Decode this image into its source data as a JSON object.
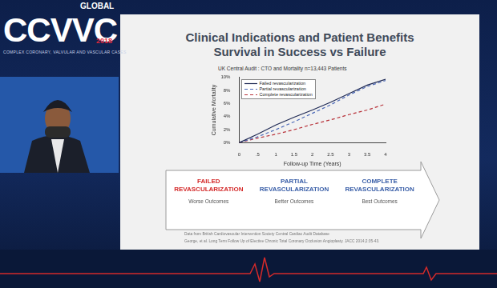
{
  "logo": {
    "event": "GLOBAL",
    "name": "CCVVC",
    "year": "2018",
    "tagline": "COMPLEX CORONARY, VALVULAR AND VASCULAR CASES"
  },
  "slide": {
    "title": [
      "Clinical Indications and Patient Benefits",
      "Survival in Success vs Failure"
    ],
    "arrow": [
      {
        "label": "FAILED REVASCULARIZATION",
        "outcome": "Worse Outcomes",
        "color": "#d42a2a"
      },
      {
        "label": "PARTIAL REVASCULARIZATION",
        "outcome": "Better Outcomes",
        "color": "#3a5fa8"
      },
      {
        "label": "COMPLETE REVASCULARIZATION",
        "outcome": "Best Outcomes",
        "color": "#3a5fa8"
      }
    ],
    "footnotes": [
      "Data from British Cardiovascular Intervention Society Central Cardiac Audit Database",
      "George, et al. Long Term Follow Up of Elective Chronic Total Coronary Occlusion Angioplasty. JACC 2014;2:35-43."
    ]
  },
  "chart_data": {
    "type": "line",
    "title": "UK Central Audit : CTO and Mortality n=13,443 Patients",
    "x_label": "Follow-up Time (Years)",
    "y_label": "Cumulative Mortality",
    "x": [
      0,
      0.5,
      1,
      1.5,
      2,
      2.5,
      3,
      3.5,
      4
    ],
    "series": [
      {
        "name": "Failed revascularization",
        "color": "#1f2a55",
        "line_style": "solid",
        "values": [
          0,
          1.3,
          2.7,
          3.9,
          5.0,
          6.2,
          7.5,
          8.8,
          9.7
        ]
      },
      {
        "name": "Partial revascularization",
        "color": "#4a68b8",
        "line_style": "dashed",
        "values": [
          0,
          0.9,
          2.0,
          3.2,
          4.5,
          5.8,
          7.3,
          8.6,
          9.5
        ]
      },
      {
        "name": "Complete revascularization",
        "color": "#b8323a",
        "line_style": "dashed",
        "values": [
          0,
          0.7,
          1.3,
          2.0,
          2.8,
          3.5,
          4.3,
          5.0,
          5.9
        ]
      }
    ],
    "xlim": [
      0,
      4
    ],
    "xticks": [
      0,
      {
        "value": 0.5,
        "label": ".5"
      },
      1,
      1.5,
      2,
      2.5,
      3,
      3.5,
      4
    ],
    "ylim": [
      0,
      10
    ],
    "yticks": [
      {
        "value": 0,
        "label": "0%"
      },
      {
        "value": 2,
        "label": "2%"
      },
      {
        "value": 4,
        "label": "4%"
      },
      {
        "value": 6,
        "label": "6%"
      },
      {
        "value": 8,
        "label": "8%"
      },
      {
        "value": 10,
        "label": "10%"
      }
    ],
    "grid": false,
    "legend": "top-left"
  }
}
